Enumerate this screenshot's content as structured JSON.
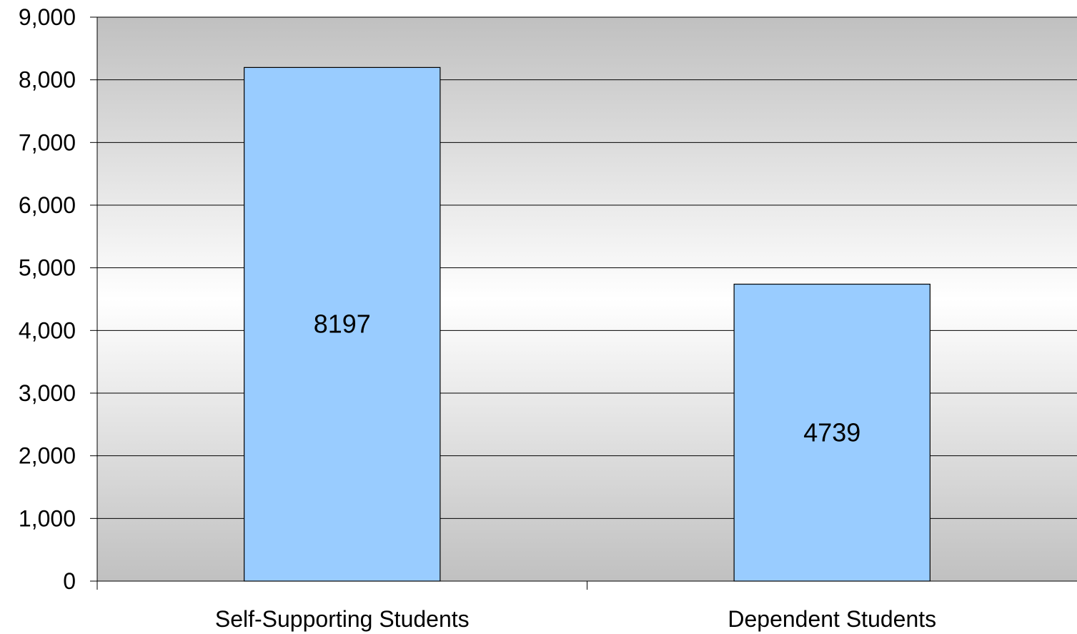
{
  "chart_data": {
    "type": "bar",
    "categories": [
      "Self-Supporting Students",
      "Dependent Students"
    ],
    "values": [
      8197,
      4739
    ],
    "data_labels": [
      "8197",
      "4739"
    ],
    "ylim": [
      0,
      9000
    ],
    "yticks": [
      0,
      1000,
      2000,
      3000,
      4000,
      5000,
      6000,
      7000,
      8000,
      9000
    ],
    "ytick_labels": [
      "0",
      "1,000",
      "2,000",
      "3,000",
      "4,000",
      "5,000",
      "6,000",
      "7,000",
      "8,000",
      "9,000"
    ],
    "title": "",
    "xlabel": "",
    "ylabel": "",
    "grid": true,
    "legend": "none",
    "colors": {
      "bar_fill": "#99ccff",
      "bar_stroke": "#000000",
      "gridline": "#000000",
      "plot_bg_outer": "#c0c0c0",
      "plot_bg_inner": "#ffffff"
    }
  }
}
